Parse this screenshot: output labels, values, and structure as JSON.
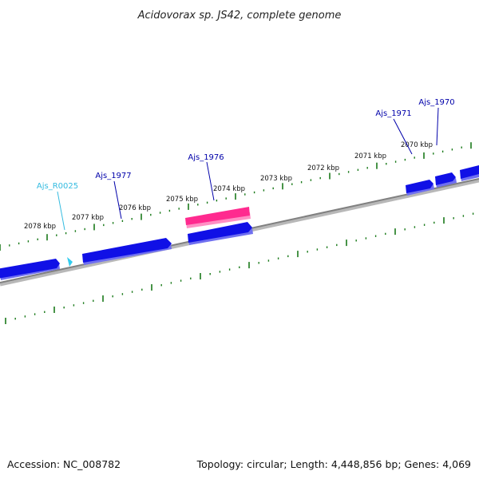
{
  "title": "Acidovorax sp. JS42, complete genome",
  "footer": {
    "accession": "Accession: NC_008782",
    "summary": "Topology: circular; Length: 4,448,856 bp; Genes: 4,069"
  },
  "colors": {
    "backbone": "#808080",
    "tick": "#1a7a1a",
    "gene": "#1010e6",
    "gene_shade": "#6f6ff0",
    "rna": "#33ccee",
    "rna_label": "#33bbe0",
    "highlight": "#ff2a8f",
    "highlight_shade": "#ff8fc4",
    "gene_label": "#0000aa"
  },
  "scale_labels": [
    "2078 kbp",
    "2077 kbp",
    "2076 kbp",
    "2075 kbp",
    "2074 kbp",
    "2073 kbp",
    "2072 kbp",
    "2071 kbp",
    "2070 kbp"
  ],
  "gene_labels": [
    {
      "name": "Ajs_R0025",
      "type": "rna"
    },
    {
      "name": "Ajs_1977",
      "type": "gene"
    },
    {
      "name": "Ajs_1976",
      "type": "gene"
    },
    {
      "name": "Ajs_1971",
      "type": "gene"
    },
    {
      "name": "Ajs_1970",
      "type": "gene"
    }
  ]
}
